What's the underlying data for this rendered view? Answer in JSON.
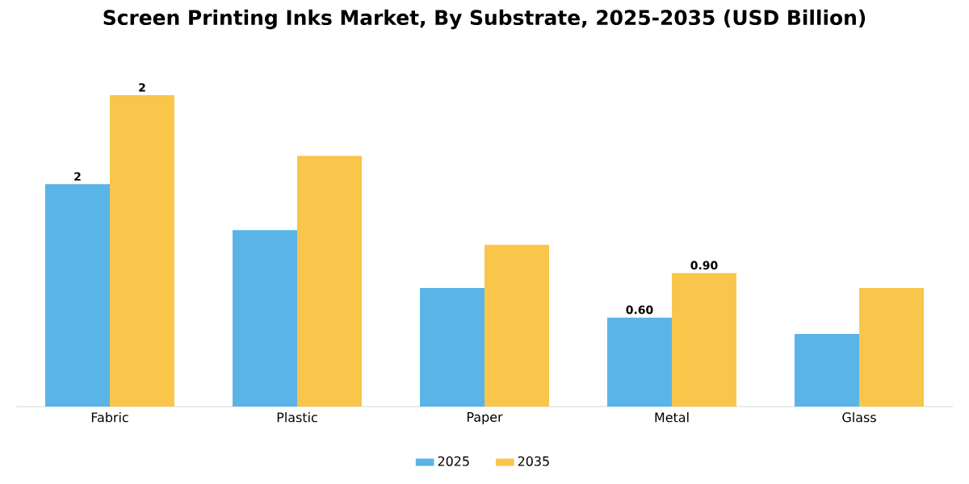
{
  "chart_data": {
    "type": "bar",
    "title": "Screen Printing Inks Market, By Substrate, 2025-2035 (USD Billion)",
    "categories": [
      "Fabric",
      "Plastic",
      "Paper",
      "Metal",
      "Glass"
    ],
    "series": [
      {
        "name": "2025",
        "color": "#5ab4e8",
        "values": [
          1.5,
          1.19,
          0.8,
          0.6,
          0.49
        ],
        "value_labels": [
          "2",
          null,
          null,
          "0.60",
          null
        ]
      },
      {
        "name": "2035",
        "color": "#f9c54a",
        "values": [
          2.1,
          1.69,
          1.09,
          0.9,
          0.8
        ],
        "value_labels": [
          "2",
          null,
          null,
          "0.90",
          null
        ]
      }
    ],
    "legend": "bottom"
  }
}
